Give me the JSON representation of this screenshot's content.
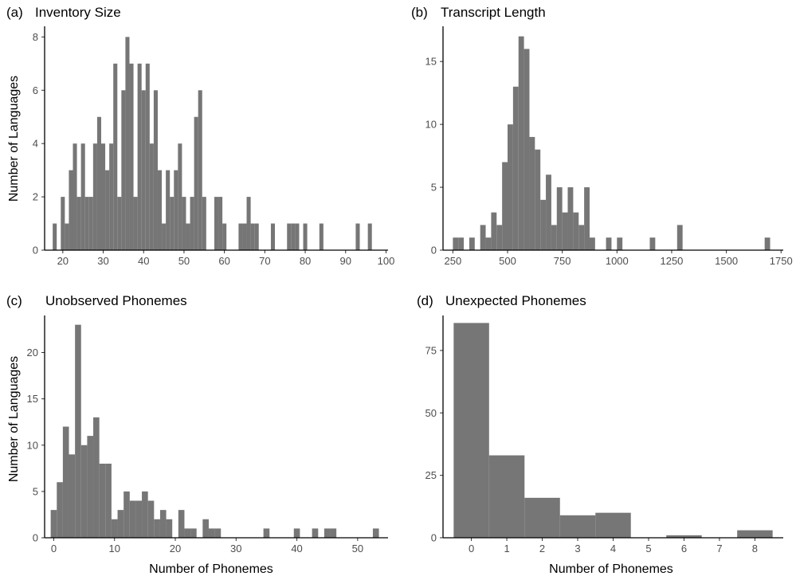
{
  "colors": {
    "bar": "#767676",
    "axis": "#000000",
    "tick_label": "#4d4d4d"
  },
  "chart_data": [
    {
      "type": "bar",
      "panel_label": "(a)",
      "title": "Inventory Size",
      "xlabel": "",
      "ylabel": "Number of Languages",
      "xlim": [
        15.5,
        100.5
      ],
      "ylim": [
        0,
        8.4
      ],
      "xticks": [
        20,
        30,
        40,
        50,
        60,
        70,
        80,
        90,
        100
      ],
      "yticks": [
        0,
        2,
        4,
        6,
        8
      ],
      "bin_width": 1,
      "x": [
        18,
        19,
        20,
        21,
        22,
        23,
        24,
        25,
        26,
        27,
        28,
        29,
        30,
        31,
        32,
        33,
        34,
        35,
        36,
        37,
        38,
        39,
        40,
        41,
        42,
        43,
        44,
        45,
        46,
        47,
        48,
        49,
        50,
        51,
        52,
        53,
        54,
        55,
        58,
        59,
        60,
        64,
        65,
        66,
        67,
        68,
        72,
        76,
        77,
        78,
        80,
        84,
        93,
        96
      ],
      "values": [
        1,
        0,
        2,
        1,
        3,
        4,
        2,
        4,
        2,
        2,
        4,
        5,
        4,
        3,
        4,
        7,
        2,
        6,
        8,
        7,
        2,
        7,
        6,
        7,
        4,
        6,
        3,
        1,
        3,
        2,
        3,
        4,
        2,
        1,
        2,
        5,
        6,
        2,
        2,
        2,
        1,
        1,
        1,
        2,
        1,
        1,
        1,
        1,
        1,
        1,
        1,
        1,
        1,
        1
      ]
    },
    {
      "type": "bar",
      "panel_label": "(b)",
      "title": "Transcript Length",
      "xlabel": "",
      "ylabel": "",
      "xlim": [
        205,
        1760
      ],
      "ylim": [
        0,
        17.8
      ],
      "xticks": [
        250,
        500,
        750,
        1000,
        1250,
        1500,
        1750
      ],
      "yticks": [
        0,
        5,
        10,
        15
      ],
      "bin_width": 25,
      "x": [
        262.5,
        287.5,
        337.5,
        387.5,
        412.5,
        437.5,
        462.5,
        487.5,
        512.5,
        537.5,
        562.5,
        587.5,
        612.5,
        637.5,
        662.5,
        687.5,
        712.5,
        737.5,
        762.5,
        787.5,
        812.5,
        837.5,
        862.5,
        887.5,
        962.5,
        1012.5,
        1162.5,
        1287.5,
        1687.5
      ],
      "values": [
        1,
        1,
        1,
        2,
        1,
        3,
        2,
        7,
        10,
        13,
        17,
        16,
        9,
        8,
        4,
        6,
        2,
        5,
        3,
        5,
        3,
        2,
        5,
        1,
        1,
        1,
        1,
        2,
        1
      ]
    },
    {
      "type": "bar",
      "panel_label": "(c)",
      "title": "Unobserved Phonemes",
      "xlabel": "Number of Phonemes",
      "ylabel": "Number of Languages",
      "xlim": [
        -1.5,
        55
      ],
      "ylim": [
        0,
        24
      ],
      "xticks": [
        0,
        10,
        20,
        30,
        40,
        50
      ],
      "yticks": [
        0,
        5,
        10,
        15,
        20
      ],
      "bin_width": 1,
      "x": [
        0,
        1,
        2,
        3,
        4,
        5,
        6,
        7,
        8,
        9,
        10,
        11,
        12,
        13,
        14,
        15,
        16,
        17,
        18,
        19,
        20,
        21,
        22,
        23,
        25,
        26,
        27,
        35,
        40,
        43,
        45,
        46,
        53
      ],
      "values": [
        3,
        6,
        12,
        9,
        23,
        10,
        11,
        13,
        8,
        8,
        2,
        3,
        5,
        4,
        4,
        5,
        4,
        2,
        3,
        2,
        0,
        3,
        1,
        1,
        2,
        1,
        1,
        1,
        1,
        1,
        1,
        1,
        1
      ]
    },
    {
      "type": "bar",
      "panel_label": "(d)",
      "title": "Unexpected Phonemes",
      "xlabel": "Number of Phonemes",
      "ylabel": "",
      "xlim": [
        -0.8,
        8.8
      ],
      "ylim": [
        0,
        89
      ],
      "xticks": [
        0,
        1,
        2,
        3,
        4,
        5,
        6,
        7,
        8
      ],
      "yticks": [
        0,
        25,
        50,
        75
      ],
      "bin_width": 1,
      "x": [
        0,
        1,
        2,
        3,
        4,
        6,
        8
      ],
      "values": [
        86,
        33,
        16,
        9,
        10,
        1,
        3
      ]
    }
  ]
}
